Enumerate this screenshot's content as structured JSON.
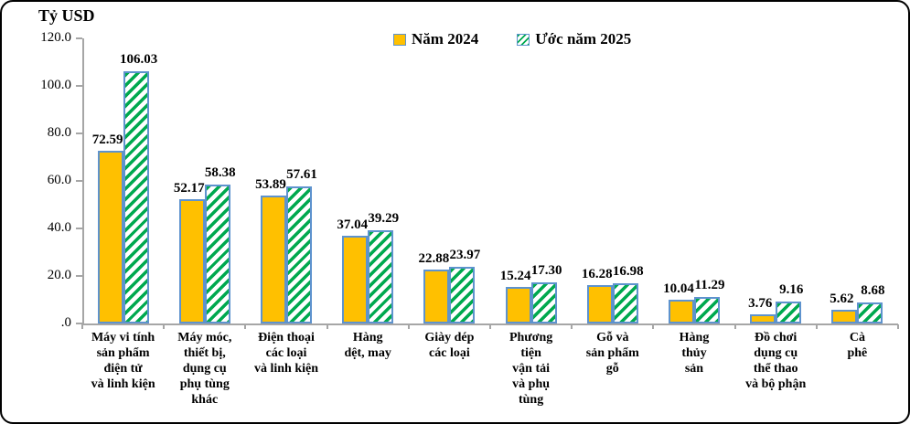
{
  "title": "Tỷ USD",
  "legend": {
    "items": [
      {
        "label": "Năm 2024",
        "swatch": "solid-orange-square"
      },
      {
        "label": "Ước năm 2025",
        "swatch": "green-hatched-square"
      }
    ]
  },
  "colors": {
    "bar_2024_fill": "#FFC000",
    "bar_border": "#5E93CE",
    "hatch_green": "#00A94F",
    "axis_gray": "#A6A6A6",
    "text": "#000000",
    "frame_border": "#000000"
  },
  "y_axis_ticks": [
    "120.0",
    "100.0",
    "80.0",
    "60.0",
    "40.0",
    "20.0",
    ".0"
  ],
  "chart_data": {
    "type": "bar",
    "title": "Tỷ USD",
    "unit": "Tỷ USD",
    "categories": [
      "Máy vi tính sản phẩm điện tử và linh kiện",
      "Máy móc, thiết bị, dụng cụ phụ tùng khác",
      "Điện thoại các loại và linh kiện",
      "Hàng dệt, may",
      "Giày dép các loại",
      "Phương tiện vận tải và phụ tùng",
      "Gỗ và sản phẩm gỗ",
      "Hàng thủy sản",
      "Đồ chơi dụng cụ thể thao và bộ phận",
      "Cà phê"
    ],
    "category_lines": [
      [
        "Máy vi tính",
        "sản phẩm",
        "điện tử",
        "và linh kiện"
      ],
      [
        "Máy móc,",
        "thiết bị,",
        "dụng cụ",
        "phụ tùng",
        "khác"
      ],
      [
        "Điện thoại",
        "các loại",
        "và linh kiện"
      ],
      [
        "Hàng",
        "dệt, may"
      ],
      [
        "Giày dép",
        "các loại"
      ],
      [
        "Phương",
        "tiện",
        "vận tải",
        "và phụ",
        "tùng"
      ],
      [
        "Gỗ và",
        "sản phẩm",
        "gỗ"
      ],
      [
        "Hàng",
        "thủy",
        "sản"
      ],
      [
        "Đồ chơi",
        "dụng cụ",
        "thể thao",
        "và bộ phận"
      ],
      [
        "Cà",
        "phê"
      ]
    ],
    "series": [
      {
        "name": "Năm 2024",
        "values": [
          72.59,
          52.17,
          53.89,
          37.04,
          22.88,
          15.24,
          16.28,
          10.04,
          3.76,
          5.62
        ]
      },
      {
        "name": "Ước năm 2025",
        "values": [
          106.03,
          58.38,
          57.61,
          39.29,
          23.97,
          17.3,
          16.98,
          11.29,
          9.16,
          8.68
        ]
      }
    ],
    "data_labels": [
      [
        "72.59",
        "52.17",
        "53.89",
        "37.04",
        "22.88",
        "15.24",
        "16.28",
        "10.04",
        "3.76",
        "5.62"
      ],
      [
        "106.03",
        "58.38",
        "57.61",
        "39.29",
        "23.97",
        "17.30",
        "16.98",
        "11.29",
        "9.16",
        "8.68"
      ]
    ],
    "ylim": [
      0,
      120
    ],
    "ytick_step": 20,
    "grid": false,
    "legend_position": "top-center"
  }
}
